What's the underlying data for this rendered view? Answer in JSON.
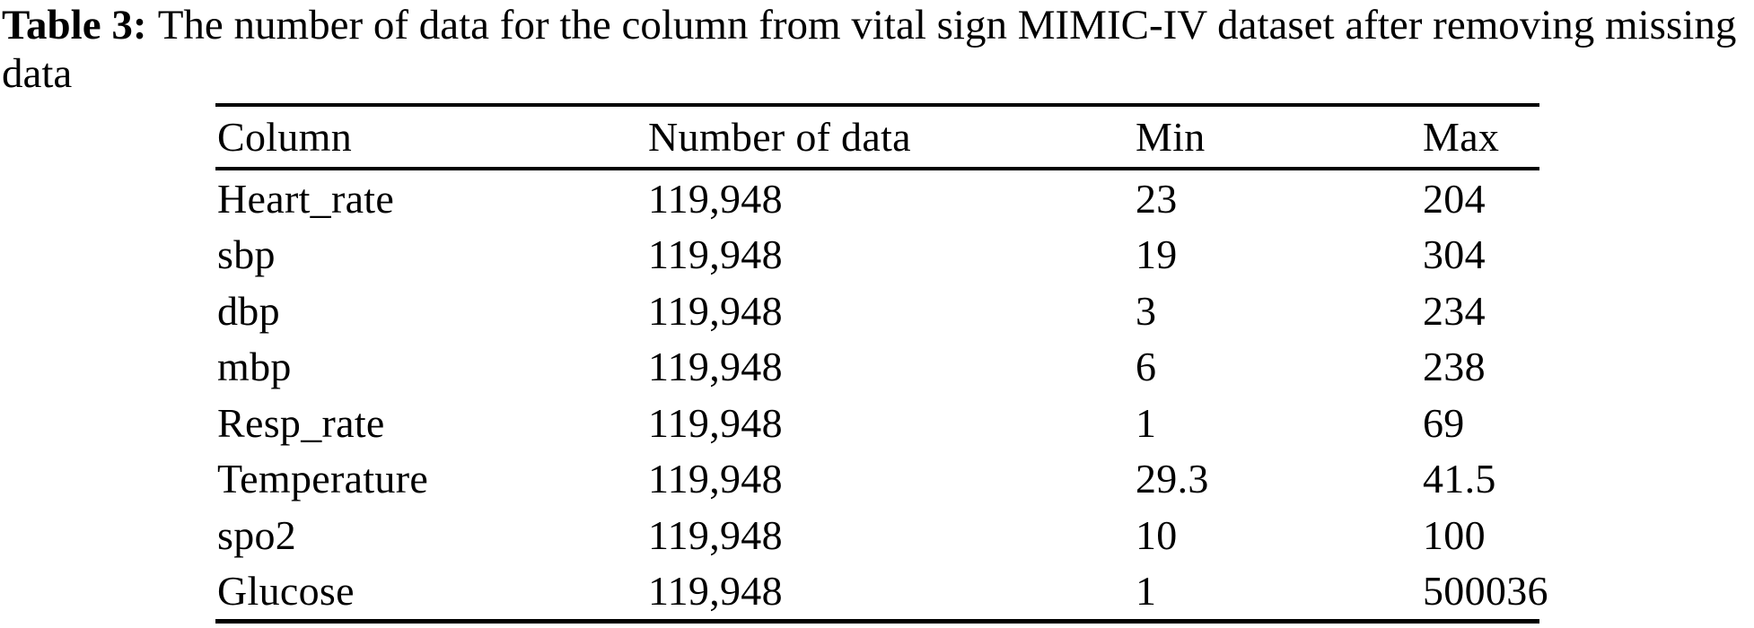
{
  "caption": {
    "label": "Table 3:",
    "text_after_label": "The number of data for the column from vital sign MIMIC-IV dataset after removing missing",
    "second_line": "data",
    "full_text": "Table 3: The number of data for the column from vital sign MIMIC-IV dataset after removing missing data"
  },
  "table": {
    "headers": [
      "Column",
      "Number of data",
      "Min",
      "Max"
    ],
    "rows": [
      [
        "Heart_rate",
        "119,948",
        "23",
        "204"
      ],
      [
        "sbp",
        "119,948",
        "19",
        "304"
      ],
      [
        "dbp",
        "119,948",
        "3",
        "234"
      ],
      [
        "mbp",
        "119,948",
        "6",
        "238"
      ],
      [
        "Resp_rate",
        "119,948",
        "1",
        "69"
      ],
      [
        "Temperature",
        "119,948",
        "29.3",
        "41.5"
      ],
      [
        "spo2",
        "119,948",
        "10",
        "100"
      ],
      [
        "Glucose",
        "119,948",
        "1",
        "500036"
      ]
    ]
  },
  "chart_data": {
    "type": "table",
    "title": "Table 3: The number of data for the column from vital sign MIMIC-IV dataset after removing missing data",
    "columns": [
      "Column",
      "Number of data",
      "Min",
      "Max"
    ],
    "rows": [
      {
        "column": "Heart_rate",
        "number_of_data": "119,948",
        "min": "23",
        "max": "204"
      },
      {
        "column": "sbp",
        "number_of_data": "119,948",
        "min": "19",
        "max": "304"
      },
      {
        "column": "dbp",
        "number_of_data": "119,948",
        "min": "3",
        "max": "234"
      },
      {
        "column": "mbp",
        "number_of_data": "119,948",
        "min": "6",
        "max": "238"
      },
      {
        "column": "Resp_rate",
        "number_of_data": "119,948",
        "min": "1",
        "max": "69"
      },
      {
        "column": "Temperature",
        "number_of_data": "119,948",
        "min": "29.3",
        "max": "41.5"
      },
      {
        "column": "spo2",
        "number_of_data": "119,948",
        "min": "10",
        "max": "100"
      },
      {
        "column": "Glucose",
        "number_of_data": "119,948",
        "min": "1",
        "max": "500036"
      }
    ]
  },
  "colors": {
    "background": "#ffffff",
    "text": "#000000",
    "rule": "#000000"
  }
}
